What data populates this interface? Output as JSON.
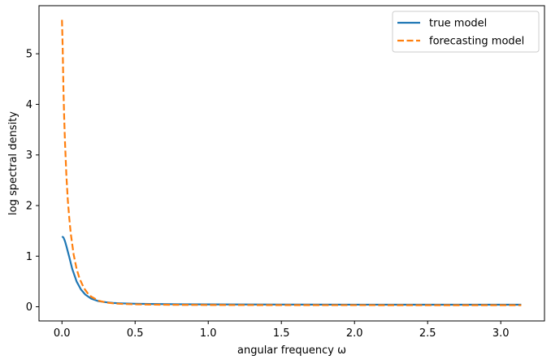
{
  "chart_data": {
    "type": "line",
    "xlabel": "angular frequency ω",
    "ylabel": "log spectral density",
    "xlim": [
      -0.157,
      3.299
    ],
    "ylim": [
      -0.28,
      5.95
    ],
    "xticks": [
      0.0,
      0.5,
      1.0,
      1.5,
      2.0,
      2.5,
      3.0
    ],
    "xtick_labels": [
      "0.0",
      "0.5",
      "1.0",
      "1.5",
      "2.0",
      "2.5",
      "3.0"
    ],
    "yticks": [
      0,
      1,
      2,
      3,
      4,
      5
    ],
    "ytick_labels": [
      "0",
      "1",
      "2",
      "3",
      "4",
      "5"
    ],
    "grid": false,
    "legend_position": "top-right",
    "series": [
      {
        "name": "true model",
        "color": "#1f77b4",
        "style": "solid",
        "x": [
          0.0,
          0.01,
          0.02,
          0.03,
          0.05,
          0.07,
          0.1,
          0.13,
          0.16,
          0.2,
          0.25,
          0.3,
          0.35,
          0.4,
          0.5,
          0.6,
          0.8,
          1.0,
          1.5,
          2.0,
          2.5,
          3.0,
          3.14
        ],
        "y": [
          1.39,
          1.37,
          1.3,
          1.2,
          0.98,
          0.75,
          0.5,
          0.34,
          0.24,
          0.16,
          0.11,
          0.09,
          0.075,
          0.068,
          0.06,
          0.055,
          0.05,
          0.047,
          0.044,
          0.042,
          0.041,
          0.041,
          0.041
        ]
      },
      {
        "name": "forecasting model",
        "color": "#ff7f0e",
        "style": "dashed",
        "x": [
          0.0,
          0.005,
          0.01,
          0.015,
          0.02,
          0.03,
          0.04,
          0.05,
          0.06,
          0.08,
          0.1,
          0.12,
          0.15,
          0.18,
          0.2,
          0.25,
          0.3,
          0.35,
          0.4,
          0.5,
          0.6,
          0.8,
          1.0,
          1.5,
          2.0,
          2.5,
          3.0,
          3.14
        ],
        "y": [
          5.67,
          5.1,
          4.3,
          3.75,
          3.3,
          2.6,
          2.1,
          1.75,
          1.45,
          1.03,
          0.75,
          0.56,
          0.37,
          0.25,
          0.2,
          0.12,
          0.085,
          0.068,
          0.058,
          0.048,
          0.043,
          0.038,
          0.035,
          0.033,
          0.032,
          0.031,
          0.031,
          0.031
        ]
      }
    ]
  }
}
